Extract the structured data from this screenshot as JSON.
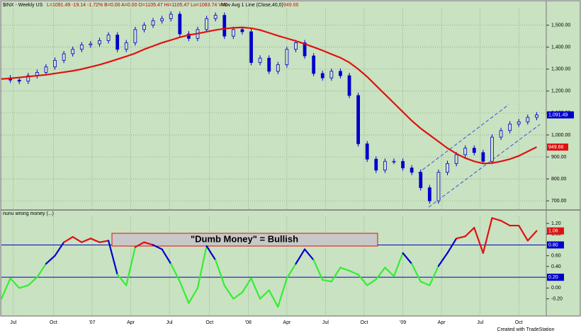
{
  "chart_data": [
    {
      "type": "candlestick",
      "header": {
        "symbol": "$INX - Weekly  US",
        "quote": "L=1091.49 -19.14 -1.72% B=0.00 A=0.00 O=1105.47 Hi=1105.47 Lo=1083.74 V=0",
        "study": "Mov Avg 1 Line (Close,40,0)",
        "study_value": "949.66"
      },
      "x": [
        0,
        3,
        6,
        9,
        12,
        15,
        18,
        21,
        24,
        27,
        30,
        33,
        36,
        39,
        42,
        45,
        48,
        51,
        54,
        57,
        60,
        63,
        66,
        69,
        72,
        75,
        78,
        81,
        84,
        87,
        90,
        93,
        96,
        99,
        102,
        105,
        108,
        111,
        114,
        117,
        120,
        123,
        126,
        129,
        132,
        135,
        138,
        141,
        144,
        147,
        150,
        153,
        156,
        159,
        162,
        165,
        168,
        171,
        174,
        177,
        180
      ],
      "xlim": [
        0,
        183
      ],
      "xticks": [
        {
          "value": 4,
          "label": "Jul"
        },
        {
          "value": 17.5,
          "label": "Oct"
        },
        {
          "value": 30.5,
          "label": "'07"
        },
        {
          "value": 43.5,
          "label": "Apr"
        },
        {
          "value": 56.5,
          "label": "Jul"
        },
        {
          "value": 70,
          "label": "Oct"
        },
        {
          "value": 83,
          "label": "'08"
        },
        {
          "value": 96,
          "label": "Apr"
        },
        {
          "value": 109,
          "label": "Jul"
        },
        {
          "value": 122,
          "label": "Oct"
        },
        {
          "value": 135,
          "label": "'09"
        },
        {
          "value": 148,
          "label": "Apr"
        },
        {
          "value": 161,
          "label": "Jul"
        },
        {
          "value": 174,
          "label": "Oct"
        }
      ],
      "close": [
        1260,
        1250,
        1245,
        1270,
        1285,
        1310,
        1340,
        1370,
        1390,
        1410,
        1415,
        1430,
        1455,
        1390,
        1420,
        1480,
        1500,
        1520,
        1530,
        1550,
        1460,
        1440,
        1480,
        1530,
        1545,
        1450,
        1480,
        1470,
        1330,
        1350,
        1290,
        1320,
        1390,
        1420,
        1360,
        1280,
        1260,
        1290,
        1270,
        1180,
        960,
        890,
        840,
        880,
        880,
        850,
        830,
        760,
        700,
        830,
        870,
        910,
        940,
        920,
        880,
        990,
        1020,
        1050,
        1060,
        1080,
        1091.49
      ],
      "candle_color": "#0000cc",
      "moving_average": {
        "color": "#e01010",
        "values": [
          1255,
          1258,
          1262,
          1266,
          1270,
          1274,
          1280,
          1286,
          1292,
          1300,
          1310,
          1320,
          1332,
          1345,
          1358,
          1372,
          1390,
          1405,
          1420,
          1432,
          1445,
          1455,
          1462,
          1470,
          1478,
          1484,
          1488,
          1490,
          1486,
          1478,
          1465,
          1452,
          1440,
          1428,
          1415,
          1400,
          1385,
          1368,
          1352,
          1330,
          1300,
          1265,
          1225,
          1185,
          1145,
          1105,
          1065,
          1030,
          1000,
          970,
          940,
          915,
          895,
          880,
          870,
          872,
          880,
          890,
          905,
          925,
          945
        ]
      },
      "last_label": "1,091.49",
      "ma_label": "949.66",
      "ylim": [
        665,
        1605
      ],
      "yticks": [
        {
          "value": 700,
          "label": "700.00"
        },
        {
          "value": 800,
          "label": "800.00"
        },
        {
          "value": 900,
          "label": "900.00"
        },
        {
          "value": 1000,
          "label": "1,000.00"
        },
        {
          "value": 1100,
          "label": "1,100.00"
        },
        {
          "value": 1200,
          "label": "1,200.00"
        },
        {
          "value": 1300,
          "label": "1,300.00"
        },
        {
          "value": 1400,
          "label": "1,400.00"
        },
        {
          "value": 1500,
          "label": "1,500.00"
        }
      ],
      "grid": true
    },
    {
      "type": "line",
      "header": "nunu wrong money (...)",
      "values": [
        -0.2,
        0.18,
        0.0,
        0.05,
        0.2,
        0.45,
        0.6,
        0.85,
        0.95,
        0.85,
        0.92,
        0.85,
        0.88,
        0.25,
        0.05,
        0.76,
        0.85,
        0.8,
        0.72,
        0.45,
        0.12,
        -0.28,
        0.0,
        0.78,
        0.52,
        0.05,
        -0.2,
        -0.08,
        0.18,
        -0.2,
        -0.04,
        -0.35,
        0.18,
        0.45,
        0.72,
        0.52,
        0.15,
        0.12,
        0.38,
        0.32,
        0.25,
        0.05,
        0.16,
        0.38,
        0.22,
        0.65,
        0.45,
        0.12,
        0.05,
        0.41,
        0.65,
        0.92,
        0.96,
        1.12,
        0.65,
        1.3,
        1.25,
        1.16,
        1.16,
        0.88,
        1.06
      ],
      "value_labels": {
        "last": "1.06"
      },
      "colors": {
        "high": "#e01010",
        "mid": "#0000cc",
        "low": "#33ee33"
      },
      "reference_lines": [
        {
          "value": 0.8,
          "label": "0.80",
          "color": "#0000cc"
        },
        {
          "value": 0.2,
          "label": "0.20",
          "color": "#0000cc"
        }
      ],
      "annotation": "\"Dumb Money\" = Bullish",
      "ylim": [
        -0.52,
        1.41
      ],
      "yticks": [
        {
          "value": -0.2,
          "label": "-0.20"
        },
        {
          "value": 0,
          "label": "0.00"
        },
        {
          "value": 0.2,
          "label": "0.20"
        },
        {
          "value": 0.4,
          "label": "0.40"
        },
        {
          "value": 0.6,
          "label": "0.60"
        },
        {
          "value": 0.8,
          "label": "0.80"
        },
        {
          "value": 1,
          "label": "1.00"
        },
        {
          "value": 1.2,
          "label": "1.20"
        }
      ]
    }
  ],
  "footer": "Created with TradeStation"
}
